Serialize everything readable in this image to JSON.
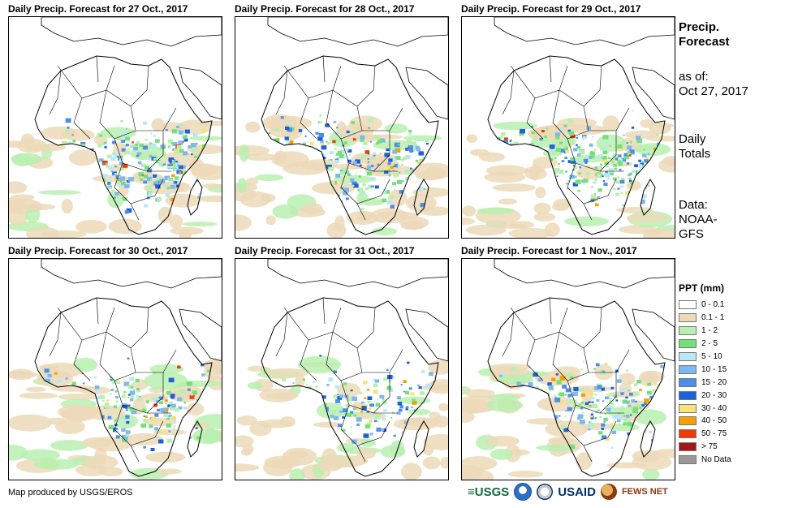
{
  "panels": [
    {
      "title": "Daily Precip. Forecast for 27 Oct., 2017",
      "rain_level": 0.95
    },
    {
      "title": "Daily Precip. Forecast for 28 Oct., 2017",
      "rain_level": 0.9
    },
    {
      "title": "Daily Precip. Forecast for 29 Oct., 2017",
      "rain_level": 0.85
    },
    {
      "title": "Daily Precip. Forecast for 30 Oct., 2017",
      "rain_level": 0.7
    },
    {
      "title": "Daily Precip. Forecast for 31 Oct., 2017",
      "rain_level": 0.55
    },
    {
      "title": "Daily Precip. Forecast for 1 Nov., 2017",
      "rain_level": 0.65
    }
  ],
  "side": {
    "title_line1": "Precip.",
    "title_line2": "Forecast",
    "asof_line1": "as of:",
    "asof_line2": "Oct 27, 2017",
    "daily_line1": "Daily",
    "daily_line2": "Totals",
    "data_line1": "Data:",
    "data_line2": "NOAA-",
    "data_line3": "GFS"
  },
  "legend": {
    "title": "PPT (mm)",
    "items": [
      {
        "label": "0 - 0.1",
        "color": "#ffffff"
      },
      {
        "label": "0.1 - 1",
        "color": "#ecd9b8"
      },
      {
        "label": "1 - 2",
        "color": "#b8f0b0"
      },
      {
        "label": "2 - 5",
        "color": "#74e07a"
      },
      {
        "label": "5 - 10",
        "color": "#b8e8f8"
      },
      {
        "label": "10 - 15",
        "color": "#7fb8ee"
      },
      {
        "label": "15 - 20",
        "color": "#4d8fe6"
      },
      {
        "label": "20 - 30",
        "color": "#1f5fd8"
      },
      {
        "label": "30 - 40",
        "color": "#f8e27a"
      },
      {
        "label": "40 - 50",
        "color": "#f4a000"
      },
      {
        "label": "50 - 75",
        "color": "#f03c00"
      },
      {
        "label": "> 75",
        "color": "#a01818"
      },
      {
        "label": "No Data",
        "color": "#999999"
      }
    ]
  },
  "credit": "Map produced by USGS/EROS",
  "logos": {
    "usgs": "≡USGS",
    "usaid": "USAID",
    "fews": "FEWS NET"
  }
}
